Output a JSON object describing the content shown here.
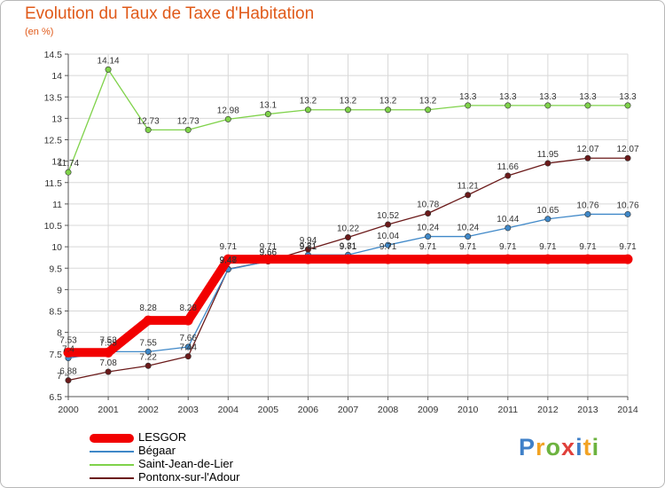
{
  "title": "Evolution du Taux de Taxe d'Habitation",
  "subtitle": "(en %)",
  "logo": {
    "text": "Proxiti",
    "letters": [
      {
        "ch": "P",
        "color": "#3f80c8"
      },
      {
        "ch": "r",
        "color": "#f2a324"
      },
      {
        "ch": "o",
        "color": "#6db33f"
      },
      {
        "ch": "x",
        "color": "#e0403a"
      },
      {
        "ch": "i",
        "color": "#3f80c8"
      },
      {
        "ch": "t",
        "color": "#f2a324"
      },
      {
        "ch": "i",
        "color": "#6db33f"
      }
    ]
  },
  "chart_data": {
    "type": "line",
    "title": "Evolution du Taux de Taxe d'Habitation",
    "ylabel": "(en %)",
    "xlabel": "",
    "categories": [
      "2000",
      "2001",
      "2002",
      "2003",
      "2004",
      "2005",
      "2006",
      "2007",
      "2008",
      "2009",
      "2010",
      "2011",
      "2012",
      "2013",
      "2014"
    ],
    "ylim": [
      6.5,
      14.5
    ],
    "yticks": [
      "6.5",
      "7",
      "7.5",
      "8",
      "8.5",
      "9",
      "9.5",
      "10",
      "10.5",
      "11",
      "11.5",
      "12",
      "12.5",
      "13",
      "13.5",
      "14",
      "14.5"
    ],
    "grid": true,
    "legend_position": "bottom-left",
    "series": [
      {
        "name": "LESGOR",
        "color": "#f20000",
        "values": [
          7.53,
          7.53,
          8.28,
          8.28,
          9.71,
          9.71,
          9.71,
          9.71,
          9.71,
          9.71,
          9.71,
          9.71,
          9.71,
          9.71,
          9.71
        ],
        "labels": [
          "7.53",
          "7.53",
          "8.28",
          "8.28",
          "9.71",
          "9.71",
          "9.71",
          "9.71",
          "9.71",
          "9.71",
          "9.71",
          "9.71",
          "9.71",
          "9.71",
          "9.71"
        ]
      },
      {
        "name": "Bégaar",
        "color": "#3f88c8",
        "values": [
          7.4,
          7.55,
          7.55,
          7.66,
          9.47,
          9.66,
          9.81,
          9.81,
          10.04,
          10.24,
          10.24,
          10.44,
          10.65,
          10.76,
          10.76
        ],
        "labels": [
          "7.4",
          "7.55",
          "7.55",
          "7.66",
          "9.47",
          "9.66",
          "9.81",
          "9.81",
          "10.04",
          "10.24",
          "10.24",
          "10.44",
          "10.65",
          "10.76",
          "10.76"
        ]
      },
      {
        "name": "Saint-Jean-de-Lier",
        "color": "#7fd24a",
        "values": [
          11.74,
          14.14,
          12.73,
          12.73,
          12.98,
          13.1,
          13.2,
          13.2,
          13.2,
          13.2,
          13.3,
          13.3,
          13.3,
          13.3,
          13.3
        ],
        "labels": [
          "11.74",
          "14.14",
          "12.73",
          "12.73",
          "12.98",
          "13.1",
          "13.2",
          "13.2",
          "13.2",
          "13.2",
          "13.3",
          "13.3",
          "13.3",
          "13.3",
          "13.3"
        ]
      },
      {
        "name": "Pontonx-sur-l'Adour",
        "color": "#6b1a1a",
        "values": [
          6.88,
          7.08,
          7.22,
          7.44,
          9.48,
          9.66,
          9.94,
          10.22,
          10.52,
          10.78,
          11.21,
          11.66,
          11.95,
          12.07,
          12.07
        ],
        "labels": [
          "6.88",
          "7.08",
          "7.22",
          "7.44",
          "9.48",
          "9.66",
          "9.94",
          "10.22",
          "10.52",
          "10.78",
          "11.21",
          "11.66",
          "11.95",
          "12.07",
          "12.07"
        ]
      }
    ]
  }
}
